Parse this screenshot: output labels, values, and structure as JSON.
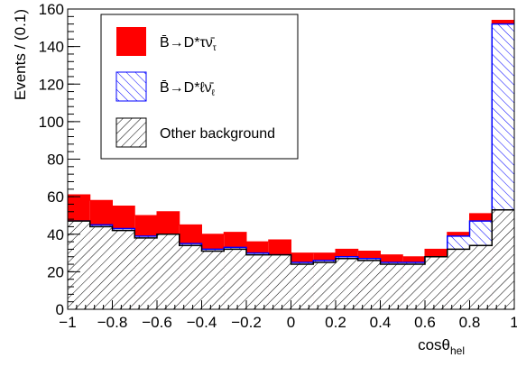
{
  "chart_data": {
    "type": "bar",
    "stacked": true,
    "histogram": true,
    "xlabel": "cosθ",
    "xlabel_sub": "hel",
    "ylabel": "Events / (0.1)",
    "xlim": [
      -1,
      1
    ],
    "ylim": [
      0,
      160
    ],
    "x_ticks": [
      "−1",
      "−0.8",
      "−0.6",
      "−0.4",
      "−0.2",
      "0",
      "0.2",
      "0.4",
      "0.6",
      "0.8",
      "1"
    ],
    "y_ticks": [
      "0",
      "20",
      "40",
      "60",
      "80",
      "100",
      "120",
      "140",
      "160"
    ],
    "bin_edges": [
      -1.0,
      -0.9,
      -0.8,
      -0.7,
      -0.6,
      -0.5,
      -0.4,
      -0.3,
      -0.2,
      -0.1,
      0.0,
      0.1,
      0.2,
      0.3,
      0.4,
      0.5,
      0.6,
      0.7,
      0.8,
      0.9,
      1.0
    ],
    "bin_edges_alt": [
      -1.0,
      -0.875,
      -0.75,
      -0.625,
      -0.5,
      -0.375,
      -0.25,
      -0.125,
      0.0,
      0.125,
      0.25,
      0.375,
      0.5,
      0.625,
      0.75,
      0.875,
      1.0
    ],
    "series": [
      {
        "name": "Other background",
        "pattern": "backslash-hatch",
        "color": "#000000",
        "cumulative": [
          47,
          44,
          42,
          38,
          40,
          34,
          31,
          32,
          29,
          29,
          24,
          25,
          27,
          26,
          24,
          24,
          28,
          32,
          34,
          53
        ]
      },
      {
        "name": "B̄→D*ℓν̄ℓ",
        "pattern": "slash-hatch",
        "color": "#0000ff",
        "cumulative": [
          47,
          45,
          43,
          39,
          40,
          35,
          32,
          33,
          30,
          29,
          25,
          26,
          28,
          27,
          25,
          25,
          28,
          39,
          47,
          152
        ]
      },
      {
        "name": "B̄→D*τν̄τ",
        "pattern": "solid",
        "color": "#ff0000",
        "cumulative": [
          61,
          58,
          55,
          50,
          52,
          45,
          40,
          41,
          36,
          37,
          30,
          30,
          32,
          31,
          29,
          28,
          32,
          41,
          51,
          154
        ]
      }
    ],
    "legend": {
      "position": "top-left",
      "entries": [
        {
          "label": "B̄→D*τ",
          "sub": "ν̄",
          "subsub": "τ",
          "pattern": "solid",
          "color": "#ff0000"
        },
        {
          "label": "B̄→D*ℓ",
          "sub": "ν̄",
          "subsub": "ℓ",
          "pattern": "slash-hatch",
          "color": "#0000ff"
        },
        {
          "label": "Other background",
          "pattern": "backslash-hatch",
          "color": "#000000"
        }
      ]
    }
  }
}
